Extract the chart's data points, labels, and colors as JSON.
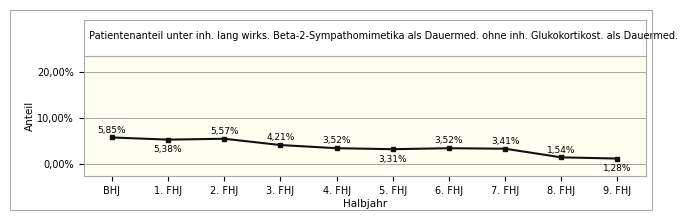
{
  "title": "Patientenanteil unter inh. lang wirks. Beta-2-Sympathomimetika als Dauermed. ohne inh. Glukokortikost. als Dauermed.",
  "xlabel": "Halbjahr",
  "ylabel": "Anteil",
  "categories": [
    "BHJ",
    "1. FHJ",
    "2. FHJ",
    "3. FHJ",
    "4. FHJ",
    "5. FHJ",
    "6. FHJ",
    "7. FHJ",
    "8. FHJ",
    "9. FHJ"
  ],
  "values": [
    5.85,
    5.38,
    5.57,
    4.21,
    3.52,
    3.31,
    3.52,
    3.41,
    1.54,
    1.28
  ],
  "labels": [
    "5,85%",
    "5,38%",
    "5,57%",
    "4,21%",
    "3,52%",
    "3,31%",
    "3,52%",
    "3,41%",
    "1,54%",
    "1,28%"
  ],
  "ylim": [
    -2.5,
    23.5
  ],
  "yticks": [
    0.0,
    10.0,
    20.0
  ],
  "ytick_labels": [
    "0,00%",
    "10,00%",
    "20,00%"
  ],
  "line_color": "#111111",
  "marker_color": "#111111",
  "plot_bg_color": "#fffff0",
  "title_bg_color": "#ffffff",
  "outer_bg_color": "#ffffff",
  "border_color": "#aaaaaa",
  "title_fontsize": 7.0,
  "label_fontsize": 6.5,
  "axis_label_fontsize": 7.5,
  "tick_fontsize": 7.0,
  "label_offsets": [
    0.6,
    -1.2,
    0.6,
    0.6,
    0.6,
    -1.2,
    0.6,
    0.6,
    0.6,
    -1.2
  ]
}
